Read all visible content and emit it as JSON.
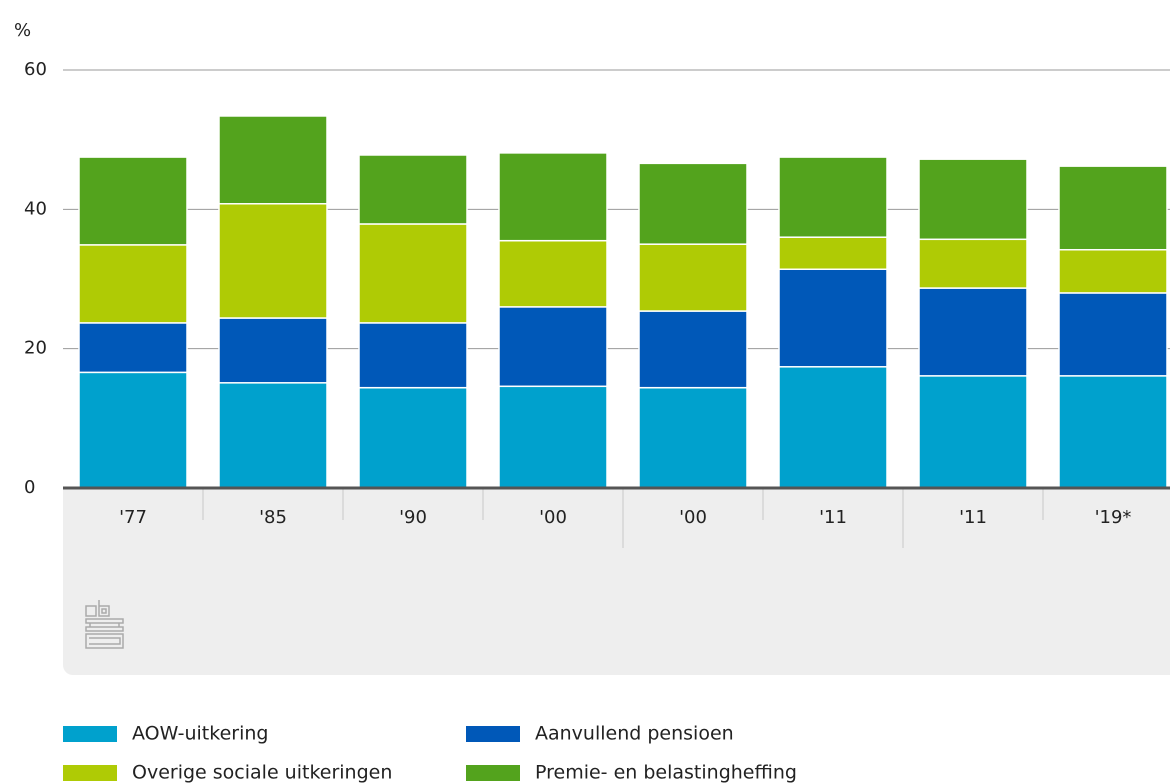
{
  "chart_data": {
    "type": "stacked_bar",
    "y_label": "%",
    "categories": [
      "'77",
      "'85",
      "'90",
      "'00",
      "'00",
      "'11",
      "'11",
      "'19*"
    ],
    "series": [
      {
        "name": "AOW-uitkering",
        "color": "#00a1cd",
        "values": [
          16.6,
          15.1,
          14.4,
          14.6,
          14.4,
          17.4,
          16.1,
          16.1
        ]
      },
      {
        "name": "Aanvullend pensioen",
        "color": "#0058b8",
        "values": [
          7.1,
          9.3,
          9.3,
          11.4,
          11.0,
          14.0,
          12.6,
          11.9
        ]
      },
      {
        "name": "Overige sociale uitkeringen",
        "color": "#afcb05",
        "values": [
          11.2,
          16.4,
          14.2,
          9.5,
          9.6,
          4.6,
          7.0,
          6.2
        ]
      },
      {
        "name": "Premie- en belastingheffing",
        "color": "#53a31d",
        "values": [
          12.6,
          12.6,
          9.9,
          12.6,
          11.6,
          11.5,
          11.5,
          12.0
        ]
      }
    ],
    "ylim": [
      0,
      60
    ],
    "yticks": [
      0,
      20,
      40,
      60
    ],
    "grid": true
  }
}
